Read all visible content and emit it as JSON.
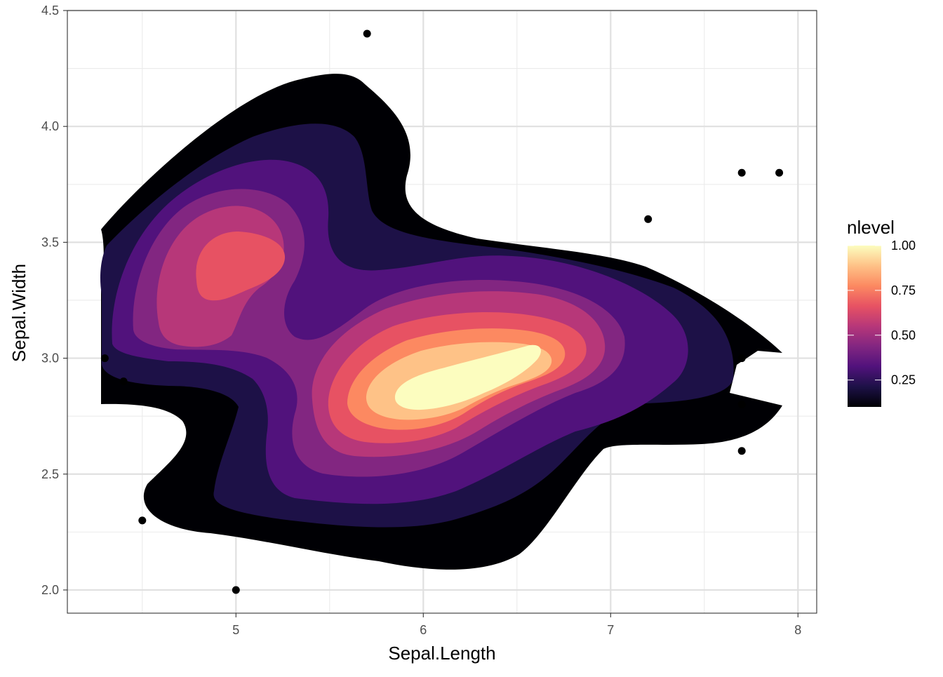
{
  "chart_data": {
    "type": "density_2d_filled",
    "title": "",
    "xlabel": "Sepal.Length",
    "ylabel": "Sepal.Width",
    "xlim": [
      4.1,
      8.1
    ],
    "ylim": [
      1.9,
      4.5
    ],
    "x_ticks": [
      5,
      6,
      7,
      8
    ],
    "y_ticks": [
      2.0,
      2.5,
      3.0,
      3.5,
      4.0,
      4.5
    ],
    "y_tick_labels": [
      "2.0",
      "2.5",
      "3.0",
      "3.5",
      "4.0",
      "4.5"
    ],
    "grid": true,
    "legend": {
      "title": "nlevel",
      "position": "right",
      "labels": [
        "1.00",
        "0.75",
        "0.50",
        "0.25"
      ],
      "values": [
        1.0,
        0.75,
        0.5,
        0.25
      ],
      "range": [
        0.1,
        1.0
      ],
      "palette": [
        "#000004",
        "#1d1147",
        "#51127c",
        "#822681",
        "#b73779",
        "#e75263",
        "#fc8961",
        "#fec287",
        "#fcfdbf"
      ]
    },
    "density_peaks": [
      {
        "x": 6.3,
        "y": 2.9,
        "nlevel": 1.0
      },
      {
        "x": 5.0,
        "y": 3.4,
        "nlevel": 0.6
      }
    ],
    "points": [
      {
        "x": 5.7,
        "y": 4.4
      },
      {
        "x": 7.7,
        "y": 3.8
      },
      {
        "x": 7.9,
        "y": 3.8
      },
      {
        "x": 7.2,
        "y": 3.6
      },
      {
        "x": 4.3,
        "y": 3.0
      },
      {
        "x": 4.4,
        "y": 2.9
      },
      {
        "x": 7.7,
        "y": 3.0
      },
      {
        "x": 7.7,
        "y": 2.8
      },
      {
        "x": 7.7,
        "y": 2.6
      },
      {
        "x": 4.5,
        "y": 2.3
      },
      {
        "x": 5.0,
        "y": 2.0
      }
    ]
  }
}
